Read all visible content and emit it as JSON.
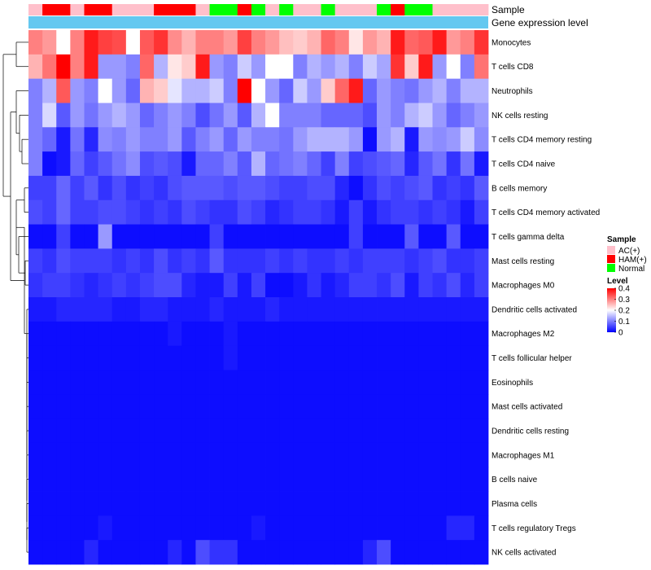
{
  "chart_data": {
    "type": "heatmap",
    "title": "",
    "annotation_labels": {
      "sample": "Sample",
      "gene_expression": "Gene expression level"
    },
    "sample_groups": [
      "AC",
      "HAM",
      "HAM",
      "AC",
      "HAM",
      "HAM",
      "AC",
      "AC",
      "AC",
      "HAM",
      "HAM",
      "HAM",
      "AC",
      "N",
      "N",
      "HAM",
      "N",
      "AC",
      "N",
      "AC",
      "AC",
      "N",
      "AC",
      "AC",
      "AC",
      "N",
      "HAM",
      "N",
      "N",
      "AC",
      "AC",
      "AC",
      "AC"
    ],
    "rows": [
      {
        "label": "Monocytes",
        "values": [
          0.3,
          0.28,
          0.2,
          0.3,
          0.38,
          0.35,
          0.34,
          0.2,
          0.33,
          0.36,
          0.29,
          0.26,
          0.3,
          0.3,
          0.28,
          0.35,
          0.3,
          0.28,
          0.25,
          0.24,
          0.26,
          0.32,
          0.3,
          0.22,
          0.28,
          0.26,
          0.38,
          0.32,
          0.33,
          0.38,
          0.28,
          0.3,
          0.36
        ]
      },
      {
        "label": "T cells CD8",
        "values": [
          0.26,
          0.31,
          0.4,
          0.3,
          0.38,
          0.12,
          0.12,
          0.1,
          0.32,
          0.14,
          0.22,
          0.24,
          0.38,
          0.12,
          0.1,
          0.16,
          0.12,
          0.2,
          0.2,
          0.1,
          0.14,
          0.12,
          0.14,
          0.1,
          0.16,
          0.13,
          0.36,
          0.24,
          0.38,
          0.12,
          0.2,
          0.1,
          0.31
        ]
      },
      {
        "label": "Neutrophils",
        "values": [
          0.1,
          0.14,
          0.33,
          0.12,
          0.1,
          0.2,
          0.12,
          0.08,
          0.26,
          0.24,
          0.18,
          0.14,
          0.14,
          0.16,
          0.1,
          0.4,
          0.2,
          0.12,
          0.08,
          0.16,
          0.12,
          0.24,
          0.32,
          0.38,
          0.08,
          0.12,
          0.1,
          0.09,
          0.12,
          0.14,
          0.1,
          0.14,
          0.14
        ]
      },
      {
        "label": "NK cells resting",
        "values": [
          0.1,
          0.17,
          0.07,
          0.12,
          0.09,
          0.12,
          0.14,
          0.12,
          0.08,
          0.1,
          0.12,
          0.1,
          0.06,
          0.09,
          0.12,
          0.07,
          0.14,
          0.2,
          0.1,
          0.1,
          0.1,
          0.08,
          0.08,
          0.08,
          0.06,
          0.12,
          0.1,
          0.14,
          0.16,
          0.12,
          0.08,
          0.1,
          0.12
        ]
      },
      {
        "label": "T cells CD4 memory resting",
        "values": [
          0.1,
          0.08,
          0.02,
          0.09,
          0.03,
          0.11,
          0.1,
          0.12,
          0.1,
          0.1,
          0.12,
          0.07,
          0.1,
          0.12,
          0.08,
          0.12,
          0.1,
          0.1,
          0.09,
          0.12,
          0.14,
          0.14,
          0.14,
          0.12,
          0.01,
          0.12,
          0.14,
          0.02,
          0.12,
          0.11,
          0.12,
          0.16,
          0.11
        ]
      },
      {
        "label": "T cells CD4 naive",
        "values": [
          0.1,
          0.01,
          0.02,
          0.08,
          0.05,
          0.07,
          0.09,
          0.11,
          0.06,
          0.07,
          0.06,
          0.02,
          0.08,
          0.08,
          0.1,
          0.07,
          0.14,
          0.08,
          0.09,
          0.1,
          0.08,
          0.05,
          0.1,
          0.05,
          0.06,
          0.07,
          0.08,
          0.03,
          0.07,
          0.09,
          0.04,
          0.09,
          0.02
        ]
      },
      {
        "label": "B cells memory",
        "values": [
          0.05,
          0.05,
          0.08,
          0.05,
          0.07,
          0.04,
          0.06,
          0.04,
          0.05,
          0.04,
          0.06,
          0.07,
          0.07,
          0.07,
          0.06,
          0.07,
          0.07,
          0.06,
          0.05,
          0.05,
          0.06,
          0.06,
          0.03,
          0.01,
          0.04,
          0.06,
          0.05,
          0.06,
          0.07,
          0.04,
          0.05,
          0.04,
          0.07
        ]
      },
      {
        "label": "T cells CD4 memory activated",
        "values": [
          0.06,
          0.05,
          0.08,
          0.05,
          0.05,
          0.06,
          0.06,
          0.05,
          0.04,
          0.05,
          0.04,
          0.06,
          0.05,
          0.04,
          0.04,
          0.06,
          0.05,
          0.03,
          0.04,
          0.05,
          0.05,
          0.04,
          0.02,
          0.05,
          0.02,
          0.04,
          0.05,
          0.05,
          0.04,
          0.05,
          0.04,
          0.02,
          0.05
        ]
      },
      {
        "label": "T cells gamma delta",
        "values": [
          0.01,
          0.01,
          0.05,
          0.01,
          0.01,
          0.12,
          0.01,
          0.01,
          0.01,
          0.01,
          0.01,
          0.01,
          0.01,
          0.05,
          0.01,
          0.01,
          0.01,
          0.01,
          0.01,
          0.01,
          0.01,
          0.01,
          0.01,
          0.05,
          0.01,
          0.01,
          0.01,
          0.07,
          0.01,
          0.01,
          0.07,
          0.01,
          0.01
        ]
      },
      {
        "label": "Mast cells resting",
        "values": [
          0.05,
          0.04,
          0.06,
          0.05,
          0.05,
          0.05,
          0.04,
          0.05,
          0.04,
          0.06,
          0.04,
          0.05,
          0.04,
          0.07,
          0.04,
          0.04,
          0.04,
          0.05,
          0.04,
          0.05,
          0.04,
          0.04,
          0.05,
          0.04,
          0.05,
          0.05,
          0.05,
          0.04,
          0.05,
          0.06,
          0.04,
          0.04,
          0.05
        ]
      },
      {
        "label": "Macrophages M0",
        "values": [
          0.04,
          0.05,
          0.05,
          0.04,
          0.03,
          0.04,
          0.05,
          0.04,
          0.05,
          0.06,
          0.06,
          0.03,
          0.02,
          0.02,
          0.05,
          0.02,
          0.05,
          0.01,
          0.01,
          0.02,
          0.04,
          0.02,
          0.03,
          0.05,
          0.05,
          0.04,
          0.06,
          0.02,
          0.05,
          0.04,
          0.06,
          0.03,
          0.05
        ]
      },
      {
        "label": "Dendritic cells activated",
        "values": [
          0.02,
          0.02,
          0.03,
          0.03,
          0.03,
          0.03,
          0.02,
          0.02,
          0.03,
          0.03,
          0.02,
          0.02,
          0.02,
          0.03,
          0.02,
          0.02,
          0.02,
          0.03,
          0.02,
          0.02,
          0.02,
          0.02,
          0.02,
          0.02,
          0.02,
          0.02,
          0.02,
          0.02,
          0.02,
          0.02,
          0.02,
          0.02,
          0.02
        ]
      },
      {
        "label": "Macrophages M2",
        "values": [
          0.01,
          0.01,
          0.01,
          0.01,
          0.01,
          0.01,
          0.01,
          0.01,
          0.01,
          0.01,
          0.02,
          0.01,
          0.01,
          0.01,
          0.02,
          0.01,
          0.01,
          0.01,
          0.01,
          0.01,
          0.01,
          0.01,
          0.01,
          0.01,
          0.01,
          0.01,
          0.01,
          0.01,
          0.01,
          0.01,
          0.01,
          0.01,
          0.01
        ]
      },
      {
        "label": "T cells follicular helper",
        "values": [
          0.01,
          0.01,
          0.01,
          0.01,
          0.01,
          0.01,
          0.01,
          0.01,
          0.01,
          0.01,
          0.01,
          0.01,
          0.01,
          0.01,
          0.02,
          0.01,
          0.01,
          0.01,
          0.01,
          0.01,
          0.01,
          0.01,
          0.01,
          0.01,
          0.01,
          0.01,
          0.01,
          0.01,
          0.01,
          0.01,
          0.01,
          0.01,
          0.01
        ]
      },
      {
        "label": "Eosinophils",
        "values": [
          0.01,
          0.01,
          0.01,
          0.01,
          0.01,
          0.01,
          0.01,
          0.01,
          0.01,
          0.01,
          0.01,
          0.01,
          0.01,
          0.01,
          0.01,
          0.01,
          0.01,
          0.01,
          0.01,
          0.01,
          0.01,
          0.01,
          0.01,
          0.01,
          0.01,
          0.01,
          0.01,
          0.01,
          0.01,
          0.01,
          0.01,
          0.01,
          0.01
        ]
      },
      {
        "label": "Mast cells activated",
        "values": [
          0.01,
          0.01,
          0.01,
          0.01,
          0.01,
          0.01,
          0.01,
          0.01,
          0.01,
          0.01,
          0.01,
          0.01,
          0.01,
          0.01,
          0.01,
          0.01,
          0.01,
          0.01,
          0.01,
          0.01,
          0.01,
          0.01,
          0.01,
          0.01,
          0.01,
          0.01,
          0.01,
          0.01,
          0.01,
          0.01,
          0.01,
          0.01,
          0.01
        ]
      },
      {
        "label": "Dendritic cells resting",
        "values": [
          0.01,
          0.01,
          0.01,
          0.01,
          0.01,
          0.01,
          0.01,
          0.01,
          0.01,
          0.01,
          0.01,
          0.01,
          0.01,
          0.01,
          0.01,
          0.01,
          0.01,
          0.01,
          0.01,
          0.01,
          0.01,
          0.01,
          0.01,
          0.01,
          0.01,
          0.01,
          0.01,
          0.01,
          0.01,
          0.01,
          0.01,
          0.01,
          0.01
        ]
      },
      {
        "label": "Macrophages M1",
        "values": [
          0.01,
          0.01,
          0.01,
          0.01,
          0.01,
          0.01,
          0.01,
          0.01,
          0.01,
          0.01,
          0.01,
          0.01,
          0.01,
          0.01,
          0.01,
          0.01,
          0.01,
          0.01,
          0.01,
          0.01,
          0.01,
          0.01,
          0.01,
          0.01,
          0.01,
          0.01,
          0.01,
          0.01,
          0.01,
          0.01,
          0.01,
          0.01,
          0.01
        ]
      },
      {
        "label": "B cells naive",
        "values": [
          0.01,
          0.01,
          0.01,
          0.01,
          0.01,
          0.01,
          0.01,
          0.01,
          0.01,
          0.01,
          0.01,
          0.01,
          0.01,
          0.01,
          0.01,
          0.01,
          0.01,
          0.01,
          0.01,
          0.01,
          0.01,
          0.01,
          0.01,
          0.01,
          0.01,
          0.01,
          0.01,
          0.01,
          0.01,
          0.01,
          0.01,
          0.01,
          0.01
        ]
      },
      {
        "label": "Plasma cells",
        "values": [
          0.01,
          0.01,
          0.01,
          0.01,
          0.01,
          0.01,
          0.01,
          0.01,
          0.01,
          0.01,
          0.01,
          0.01,
          0.01,
          0.01,
          0.01,
          0.01,
          0.01,
          0.01,
          0.01,
          0.01,
          0.01,
          0.01,
          0.01,
          0.01,
          0.01,
          0.01,
          0.01,
          0.01,
          0.01,
          0.01,
          0.01,
          0.01,
          0.01
        ]
      },
      {
        "label": "T cells regulatory  Tregs",
        "values": [
          0.01,
          0.01,
          0.01,
          0.01,
          0.01,
          0.02,
          0.01,
          0.01,
          0.01,
          0.01,
          0.01,
          0.01,
          0.01,
          0.01,
          0.01,
          0.01,
          0.02,
          0.01,
          0.01,
          0.01,
          0.01,
          0.01,
          0.01,
          0.01,
          0.01,
          0.01,
          0.01,
          0.01,
          0.01,
          0.01,
          0.03,
          0.03,
          0.01
        ]
      },
      {
        "label": "NK cells activated",
        "values": [
          0.01,
          0.01,
          0.01,
          0.01,
          0.03,
          0.01,
          0.01,
          0.01,
          0.01,
          0.01,
          0.03,
          0.01,
          0.06,
          0.04,
          0.04,
          0.01,
          0.01,
          0.01,
          0.01,
          0.01,
          0.01,
          0.01,
          0.01,
          0.01,
          0.03,
          0.06,
          0.01,
          0.01,
          0.01,
          0.01,
          0.01,
          0.01,
          0.01
        ]
      }
    ],
    "color_scale": {
      "min": 0,
      "max": 0.4,
      "low": "#0000ff",
      "mid": "#ffffff",
      "high": "#ff0000",
      "midpoint": 0.2
    },
    "legends": {
      "sample": {
        "title": "Sample",
        "entries": [
          {
            "key": "AC",
            "label": "AC(+)",
            "color": "#ffc0cb"
          },
          {
            "key": "HAM",
            "label": "HAM(+)",
            "color": "#ff0000"
          },
          {
            "key": "N",
            "label": "Normal",
            "color": "#00ff00"
          }
        ]
      },
      "level": {
        "title": "Level",
        "ticks": [
          {
            "value": 0.4,
            "label": "0.4"
          },
          {
            "value": 0.3,
            "label": "0.3"
          },
          {
            "value": 0.2,
            "label": "0.2"
          },
          {
            "value": 0.1,
            "label": "0.1"
          },
          {
            "value": 0,
            "label": "0"
          }
        ]
      }
    },
    "gene_expression_color": "#64c8f0",
    "row_dendrogram": true
  }
}
